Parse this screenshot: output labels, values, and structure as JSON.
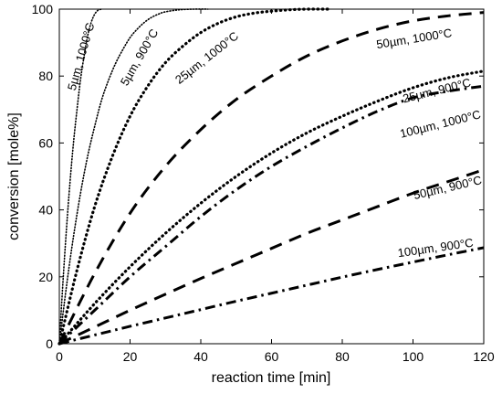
{
  "chart_data": {
    "type": "line",
    "title": "",
    "xlabel": "reaction time [min]",
    "ylabel": "conversion [mole%]",
    "xlim": [
      0,
      120
    ],
    "ylim": [
      0,
      100
    ],
    "xticks": [
      0,
      20,
      40,
      60,
      80,
      100,
      120
    ],
    "yticks": [
      0,
      20,
      40,
      60,
      80,
      100
    ],
    "grid": false,
    "legend": "none",
    "series": [
      {
        "label": "5µm, 1000°C",
        "style": "dotted-fine",
        "x": [
          0,
          1,
          2,
          3,
          4,
          5,
          6,
          7,
          8,
          9,
          10,
          11,
          12
        ],
        "y": [
          0,
          18,
          34,
          48,
          60,
          70,
          79,
          86,
          92,
          96,
          98.5,
          99.7,
          100
        ]
      },
      {
        "label": "5µm, 900°C",
        "style": "dotted-fine",
        "x": [
          0,
          2,
          4,
          6,
          8,
          10,
          12,
          14,
          16,
          18,
          20,
          22,
          24,
          26,
          28,
          30,
          34,
          38,
          42
        ],
        "y": [
          0,
          17,
          32,
          45,
          56,
          65,
          73,
          79,
          84,
          88,
          91.5,
          94,
          96,
          97.5,
          98.5,
          99.2,
          99.8,
          100,
          100
        ]
      },
      {
        "label": "25µm, 1000°C",
        "style": "dotted-bold",
        "x": [
          0,
          5,
          10,
          15,
          20,
          25,
          30,
          35,
          40,
          45,
          50,
          55,
          60,
          65,
          70,
          76
        ],
        "y": [
          0,
          22,
          41,
          56,
          68,
          77,
          84,
          89,
          93,
          95.8,
          97.7,
          98.8,
          99.4,
          99.8,
          100,
          100
        ]
      },
      {
        "label": "50µm, 1000°C",
        "style": "dash-long",
        "x": [
          0,
          10,
          20,
          30,
          40,
          50,
          60,
          70,
          80,
          90,
          100,
          110,
          120
        ],
        "y": [
          0,
          21,
          39,
          53,
          64,
          73,
          80,
          86,
          90.5,
          94,
          96.5,
          98,
          99
        ]
      },
      {
        "label": "25µm, 900°C",
        "style": "dotted-bold",
        "x": [
          0,
          10,
          20,
          30,
          40,
          50,
          60,
          70,
          80,
          90,
          100,
          110,
          120
        ],
        "y": [
          0,
          12,
          23,
          33,
          42,
          50,
          57,
          63,
          68,
          72.5,
          76.5,
          79.5,
          81.5
        ]
      },
      {
        "label": "100µm, 1000°C",
        "style": "dash-dot",
        "x": [
          0,
          10,
          20,
          30,
          40,
          50,
          60,
          70,
          80,
          90,
          100,
          110,
          120
        ],
        "y": [
          0,
          10,
          20,
          29,
          38,
          46,
          53,
          59,
          64.5,
          69.5,
          73.5,
          75.5,
          77
        ]
      },
      {
        "label": "50µm, 900°C",
        "style": "dash-long",
        "x": [
          0,
          10,
          20,
          30,
          40,
          50,
          60,
          70,
          80,
          90,
          100,
          110,
          120
        ],
        "y": [
          0,
          5,
          10,
          14.8,
          19.5,
          24,
          28.5,
          33,
          37,
          41,
          45,
          48.5,
          52
        ]
      },
      {
        "label": "100µm, 900°C",
        "style": "dash-dot",
        "x": [
          0,
          10,
          20,
          30,
          40,
          50,
          60,
          70,
          80,
          90,
          100,
          110,
          120
        ],
        "y": [
          0,
          2.6,
          5.2,
          7.7,
          10.2,
          12.7,
          15.1,
          17.5,
          19.9,
          22.2,
          24.4,
          26.6,
          28.7
        ]
      }
    ]
  }
}
